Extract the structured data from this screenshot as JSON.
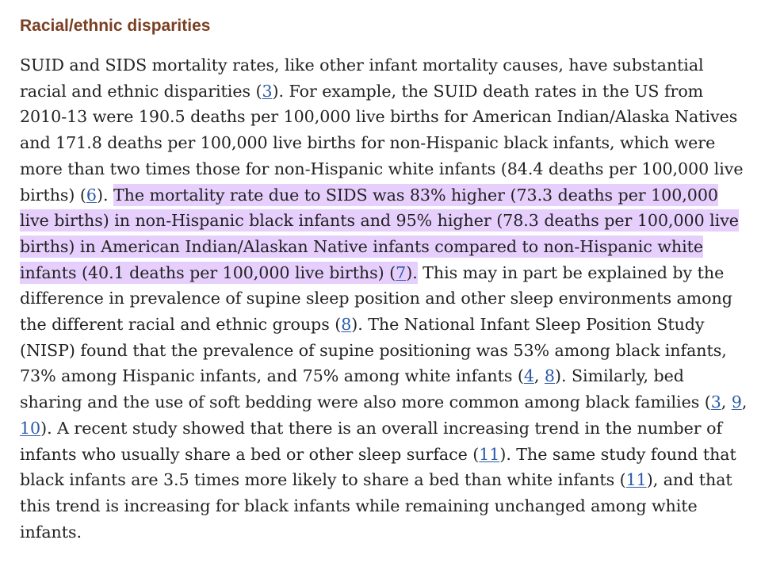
{
  "section": {
    "heading": "Racial/ethnic disparities"
  },
  "paragraph": {
    "t01": "SUID and SIDS mortality rates, like other infant mortality causes, have substantial racial and ethnic disparities (",
    "r01": "3",
    "t02": "). For example, the SUID death rates in the US from 2010-13 were 190.5 deaths per 100,000 live births for American Indian/Alaska Natives and 171.8 deaths per 100,000 live births for non-Hispanic black infants, which were more than two times those for non-Hispanic white infants (84.4 deaths per 100,000 live births) (",
    "r02": "6",
    "t03": "). ",
    "h01": "The mortality rate due to SIDS was 83% higher (73.3 deaths per 100,000 live births) in non-Hispanic black infants and 95% higher (78.3 deaths per 100,000 live births) in American Indian/Alaskan Native infants compared to non-Hispanic white infants (40.1 deaths per 100,000 live births) (",
    "r03": "7",
    "h02": ").",
    "t04": " This may in part be explained by the difference in prevalence of supine sleep position and other sleep environments among the different racial and ethnic groups (",
    "r04": "8",
    "t05": "). The National Infant Sleep Position Study (NISP) found that the prevalence of supine positioning was 53% among black infants, 73% among Hispanic infants, and 75% among white infants (",
    "r05": "4",
    "t06": ", ",
    "r06": "8",
    "t07": "). Similarly, bed sharing and the use of soft bedding were also more common among black families (",
    "r07": "3",
    "t08": ", ",
    "r08": "9",
    "t09": ", ",
    "r09": "10",
    "t10": "). A recent study showed that there is an overall increasing trend in the number of infants who usually share a bed or other sleep surface (",
    "r10": "11",
    "t11": "). The same study found that black infants are 3.5 times more likely to share a bed than white infants (",
    "r11": "11",
    "t12": "), and that this trend is increasing for black infants while remaining unchanged among white infants."
  },
  "colors": {
    "heading": "#7a3f22",
    "text": "#222222",
    "link": "#2a5aa8",
    "highlight": "#e6cffc"
  }
}
